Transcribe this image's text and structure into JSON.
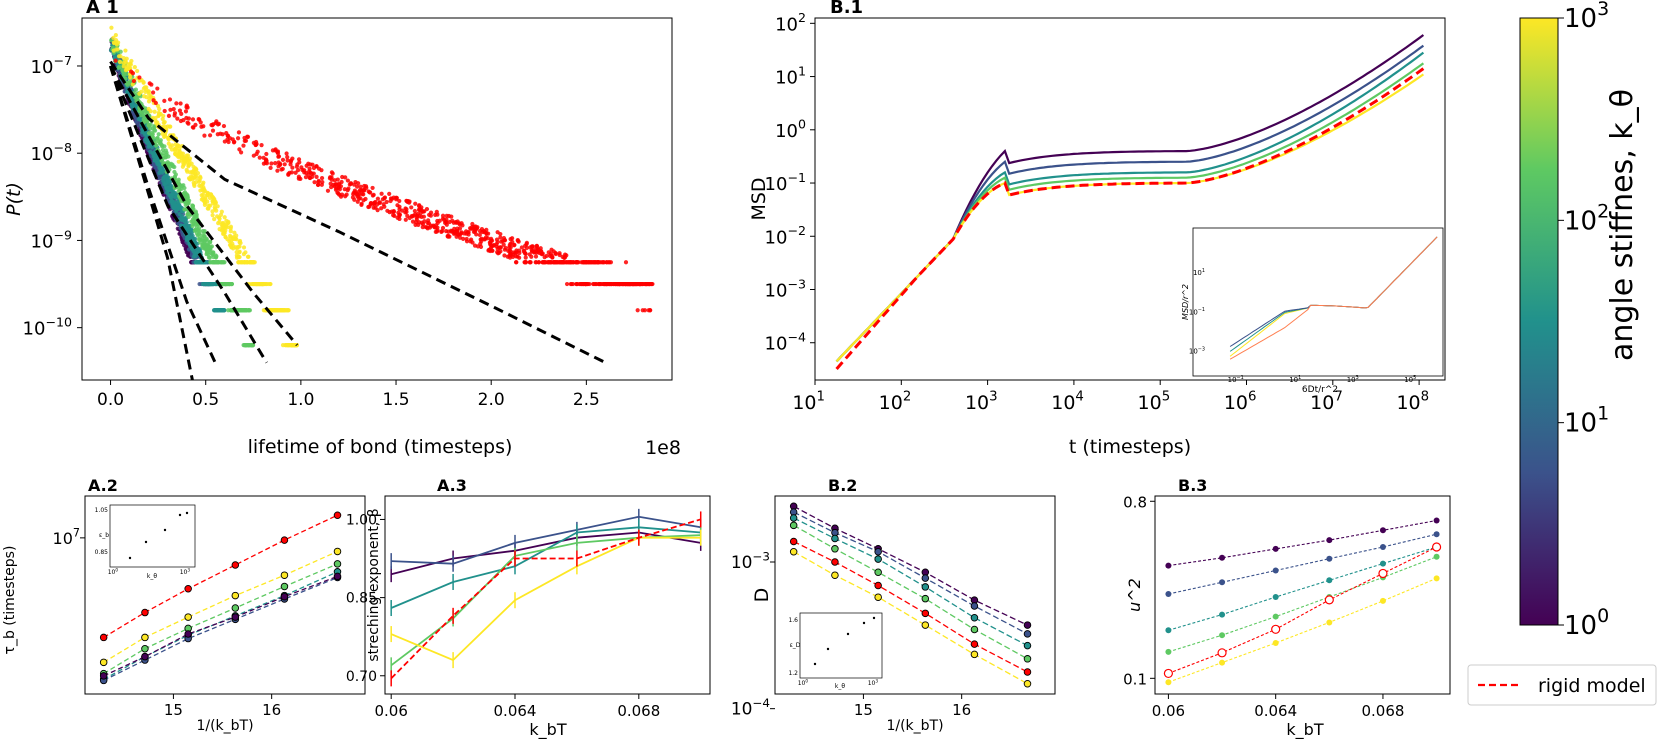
{
  "colorbar": {
    "label": "angle stiffnes, k_θ",
    "ticks": [
      "10^0",
      "10^1",
      "10^2",
      "10^3"
    ],
    "colors": [
      "#440154",
      "#3b528b",
      "#21918c",
      "#5ec962",
      "#fde725"
    ]
  },
  "legend": {
    "entries": [
      {
        "label": "rigid model",
        "color": "#ff0000",
        "style": "dashed"
      }
    ]
  },
  "chart_data": [
    {
      "id": "A1",
      "panel_label": "A 1",
      "type": "scatter",
      "title": "",
      "xlabel": "lifetime of bond (timesteps)",
      "ylabel": "P(t)",
      "x_multiplier": "1e8",
      "xlim": [
        -0.15,
        2.95
      ],
      "ylog": true,
      "ylim_exp": [
        -10.6,
        -6.45
      ],
      "xticks": [
        "0.0",
        "0.5",
        "1.0",
        "1.5",
        "2.0",
        "2.5"
      ],
      "yticks": [
        "10^-7",
        "10^-8",
        "10^-9",
        "10^-10"
      ],
      "series": [
        {
          "name": "k_θ=10^0",
          "color": "#440154",
          "logP0": -6.7,
          "tau": 0.065,
          "beta": 0.92,
          "xmax": 0.44
        },
        {
          "name": "k_θ=10^0.75",
          "color": "#3b528b",
          "logP0": -6.7,
          "tau": 0.068,
          "beta": 0.92,
          "xmax": 0.52
        },
        {
          "name": "k_θ=10^1.5",
          "color": "#21918c",
          "logP0": -6.7,
          "tau": 0.075,
          "beta": 0.96,
          "xmax": 0.6
        },
        {
          "name": "k_θ=10^2.25",
          "color": "#5ec962",
          "logP0": -6.7,
          "tau": 0.09,
          "beta": 0.98,
          "xmax": 0.75
        },
        {
          "name": "k_θ=10^3",
          "color": "#fde725",
          "logP0": -6.65,
          "tau": 0.115,
          "beta": 0.98,
          "xmax": 0.98
        },
        {
          "name": "rigid model",
          "color": "#ff0000",
          "logP0": -6.85,
          "tau": 0.19,
          "beta": 0.68,
          "xmax": 2.85
        }
      ],
      "fits": [
        {
          "points": [
            [
              0.0,
              -7.0
            ],
            [
              0.15,
              -8.1
            ],
            [
              0.3,
              -9.2
            ],
            [
              0.43,
              -10.6
            ]
          ]
        },
        {
          "points": [
            [
              0.0,
              -7.0
            ],
            [
              0.2,
              -8.4
            ],
            [
              0.4,
              -9.7
            ],
            [
              0.55,
              -10.4
            ]
          ]
        },
        {
          "points": [
            [
              0.0,
              -7.0
            ],
            [
              0.3,
              -8.6
            ],
            [
              0.6,
              -9.6
            ],
            [
              0.82,
              -10.4
            ]
          ]
        },
        {
          "points": [
            [
              0.0,
              -7.0
            ],
            [
              0.4,
              -8.6
            ],
            [
              0.75,
              -9.6
            ],
            [
              0.98,
              -10.2
            ]
          ]
        },
        {
          "points": [
            [
              0.0,
              -6.95
            ],
            [
              0.2,
              -7.6
            ],
            [
              0.6,
              -8.3
            ],
            [
              1.2,
              -8.9
            ],
            [
              2.0,
              -9.75
            ],
            [
              2.6,
              -10.4
            ]
          ]
        }
      ]
    },
    {
      "id": "B1",
      "panel_label": "B.1",
      "type": "line",
      "xlabel": "t (timesteps)",
      "ylabel": "MSD",
      "xlog": true,
      "ylog": true,
      "xlim_exp": [
        1,
        8.3
      ],
      "ylim_exp": [
        -4.7,
        2.1
      ],
      "xticks": [
        "10^1",
        "10^2",
        "10^3",
        "10^4",
        "10^5",
        "10^6",
        "10^7",
        "10^8"
      ],
      "yticks": [
        "10^2",
        "10^1",
        "10^0",
        "10^-1",
        "10^-2",
        "10^-3",
        "10^-4"
      ],
      "plateau_logMSD": [
        -0.4,
        -0.6,
        -0.8,
        -0.9,
        -1.0,
        -1.0
      ],
      "end_logMSD": [
        1.78,
        1.58,
        1.45,
        1.25,
        1.04,
        1.15
      ],
      "series_colors": [
        "#440154",
        "#3b528b",
        "#21918c",
        "#5ec962",
        "#fde725",
        "#ff0000"
      ],
      "series_names": [
        "k_θ=10^0",
        "k_θ=10^0.75",
        "k_θ=10^1.5",
        "k_θ=10^2.25",
        "k_θ=10^3",
        "rigid model"
      ],
      "inset": {
        "xlabel": "6Dt/r^2",
        "ylabel": "MSD/r^2",
        "xticks": [
          "10^-1",
          "10^1",
          "10^3",
          "10^5"
        ],
        "yticks": [
          "10^1",
          "10^-1",
          "10^-3"
        ]
      }
    },
    {
      "id": "A2",
      "panel_label": "A.2",
      "type": "scatter",
      "xlabel": "1/(k_bT)",
      "ylabel": "τ_b (timesteps)",
      "xticks": [
        "15",
        "16"
      ],
      "yticks": [
        "10^7"
      ],
      "x": [
        14.29,
        14.71,
        15.15,
        15.63,
        16.13,
        16.67
      ],
      "series": [
        {
          "name": "rigid model",
          "color": "#ff0000",
          "y": [
            0.0,
            0.22,
            0.43,
            0.64,
            0.86,
            1.08
          ]
        },
        {
          "name": "k_θ=10^3",
          "color": "#fde725",
          "y": [
            -0.22,
            0.0,
            0.18,
            0.37,
            0.55,
            0.76
          ]
        },
        {
          "name": "k_θ=10^2.25",
          "color": "#5ec962",
          "y": [
            -0.32,
            -0.1,
            0.08,
            0.26,
            0.45,
            0.65
          ]
        },
        {
          "name": "k_θ=10^1.5",
          "color": "#21918c",
          "y": [
            -0.37,
            -0.17,
            0.02,
            0.19,
            0.37,
            0.58
          ]
        },
        {
          "name": "k_θ=10^0.75",
          "color": "#3b528b",
          "y": [
            -0.38,
            -0.2,
            -0.01,
            0.16,
            0.34,
            0.53
          ]
        },
        {
          "name": "k_θ=10^0",
          "color": "#440154",
          "y": [
            -0.34,
            -0.17,
            0.03,
            0.18,
            0.36,
            0.54
          ]
        }
      ],
      "inset": {
        "xlabel": "k_θ",
        "ylabel": "ε_b",
        "yticks": [
          "1.05",
          "0.85"
        ],
        "xticks": [
          "10^0",
          "10^3"
        ]
      }
    },
    {
      "id": "A3",
      "panel_label": "A.3",
      "type": "line",
      "xlabel": "k_bT",
      "ylabel": "streching exponent, β",
      "xticks": [
        "0.06",
        "0.064",
        "0.068"
      ],
      "yticks": [
        "0.70",
        "0.85",
        "1.00"
      ],
      "xlim": [
        0.0598,
        0.0703
      ],
      "ylim": [
        0.665,
        1.045
      ],
      "x": [
        0.06,
        0.062,
        0.064,
        0.066,
        0.068,
        0.07
      ],
      "series": [
        {
          "name": "k_θ=10^0",
          "color": "#440154",
          "y": [
            0.895,
            0.925,
            0.94,
            0.965,
            0.975,
            0.955
          ]
        },
        {
          "name": "k_θ=10^0.75",
          "color": "#3b528b",
          "y": [
            0.92,
            0.915,
            0.955,
            0.98,
            1.005,
            0.985
          ]
        },
        {
          "name": "k_θ=10^1.5",
          "color": "#21918c",
          "y": [
            0.83,
            0.88,
            0.91,
            0.975,
            0.985,
            0.975
          ]
        },
        {
          "name": "k_θ=10^2.25",
          "color": "#5ec962",
          "y": [
            0.72,
            0.81,
            0.93,
            0.955,
            0.965,
            0.97
          ]
        },
        {
          "name": "k_θ=10^3",
          "color": "#fde725",
          "y": [
            0.78,
            0.73,
            0.845,
            0.91,
            0.965,
            0.965
          ]
        },
        {
          "name": "rigid model",
          "color": "#ff0000",
          "y": [
            0.695,
            0.815,
            0.925,
            0.925,
            0.965,
            1.0
          ]
        }
      ]
    },
    {
      "id": "B2",
      "panel_label": "B.2",
      "type": "scatter",
      "xlabel": "1/(k_bT)",
      "ylabel": "D",
      "xticks": [
        "15",
        "16"
      ],
      "yticks": [
        "10^-3",
        "10^-4"
      ],
      "x": [
        14.29,
        14.71,
        15.15,
        15.63,
        16.13,
        16.67
      ],
      "series": [
        {
          "name": "k_θ=10^0",
          "color": "#440154",
          "logD": [
            -2.62,
            -2.77,
            -2.91,
            -3.07,
            -3.26,
            -3.43
          ]
        },
        {
          "name": "k_θ=10^0.75",
          "color": "#3b528b",
          "logD": [
            -2.66,
            -2.8,
            -2.93,
            -3.11,
            -3.3,
            -3.49
          ]
        },
        {
          "name": "k_θ=10^1.5",
          "color": "#21918c",
          "logD": [
            -2.7,
            -2.84,
            -2.98,
            -3.17,
            -3.38,
            -3.57
          ]
        },
        {
          "name": "k_θ=10^2.25",
          "color": "#5ec962",
          "logD": [
            -2.75,
            -2.91,
            -3.07,
            -3.25,
            -3.46,
            -3.66
          ]
        },
        {
          "name": "rigid model",
          "color": "#ff0000",
          "logD": [
            -2.86,
            -3.0,
            -3.16,
            -3.35,
            -3.56,
            -3.75
          ]
        },
        {
          "name": "k_θ=10^3",
          "color": "#fde725",
          "logD": [
            -2.93,
            -3.09,
            -3.24,
            -3.43,
            -3.63,
            -3.83
          ]
        }
      ],
      "inset": {
        "xlabel": "k_θ",
        "ylabel": "ε_D",
        "yticks": [
          "1.6",
          "1.2"
        ],
        "xticks": [
          "10^0",
          "10^3"
        ]
      }
    },
    {
      "id": "B3",
      "panel_label": "B.3",
      "type": "scatter",
      "xlabel": "k_bT",
      "ylabel": "u^2",
      "xticks": [
        "0.06",
        "0.064",
        "0.068"
      ],
      "yticks": [
        "0.8",
        "0.1"
      ],
      "x": [
        0.06,
        0.062,
        0.064,
        0.066,
        0.068,
        0.07
      ],
      "series": [
        {
          "name": "k_θ=10^0",
          "color": "#440154",
          "logU": [
            -0.425,
            -0.385,
            -0.34,
            -0.295,
            -0.245,
            -0.195
          ]
        },
        {
          "name": "k_θ=10^0.75",
          "color": "#3b528b",
          "logU": [
            -0.57,
            -0.51,
            -0.45,
            -0.39,
            -0.33,
            -0.265
          ]
        },
        {
          "name": "k_θ=10^1.5",
          "color": "#21918c",
          "logU": [
            -0.755,
            -0.675,
            -0.585,
            -0.5,
            -0.415,
            -0.33
          ]
        },
        {
          "name": "k_θ=10^2.25",
          "color": "#5ec962",
          "logU": [
            -0.865,
            -0.78,
            -0.685,
            -0.585,
            -0.485,
            -0.38
          ]
        },
        {
          "name": "k_θ=10^3",
          "color": "#fde725",
          "logU": [
            -1.02,
            -0.92,
            -0.82,
            -0.715,
            -0.605,
            -0.49
          ]
        },
        {
          "name": "rigid model",
          "color": "#ff0000",
          "hollow": true,
          "logU": [
            -0.975,
            -0.87,
            -0.75,
            -0.6,
            -0.465,
            -0.33
          ]
        }
      ]
    }
  ]
}
